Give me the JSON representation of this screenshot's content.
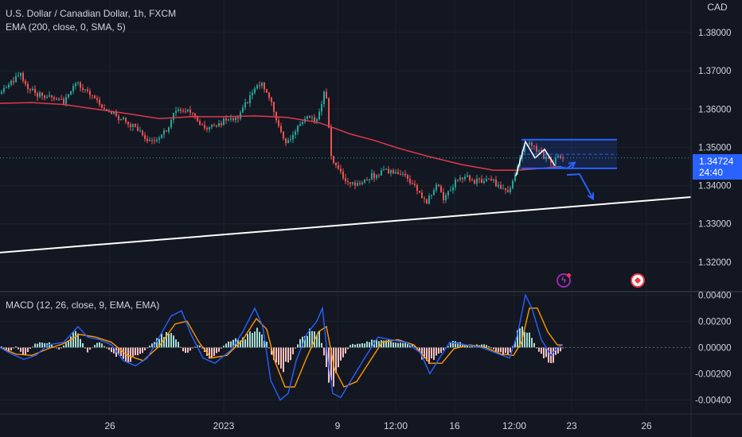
{
  "header": {
    "symbol_title": "U.S. Dollar / Canadian Dollar, 1h, FXCM",
    "ema_label": "EMA (200, close, 0, SMA, 5)",
    "macd_label": "MACD (12, 26, close, 9, EMA, EMA)",
    "currency": "CAD"
  },
  "price_tag": {
    "price": "1.34724",
    "countdown": "24:40"
  },
  "colors": {
    "background": "#131722",
    "grid": "#1e222d",
    "up": "#26a69a",
    "down": "#ef5350",
    "ema": "#e0394e",
    "trendline": "#ffffff",
    "drawing": "#2962ff",
    "macd_line": "#2962ff",
    "signal_line": "#ff9800",
    "hist_up": "#a6dcd2",
    "hist_down": "#fbc1c1"
  },
  "events": [
    {
      "icon": "flash-event-icon"
    },
    {
      "icon": "canada-flag-icon"
    }
  ],
  "chart_data": [
    {
      "type": "candlestick",
      "title": "U.S. Dollar / Canadian Dollar, 1h, FXCM",
      "ylim": [
        1.3125,
        1.3885
      ],
      "yticks": [
        "1.38000",
        "1.37000",
        "1.36000",
        "1.35000",
        "1.34000",
        "1.33000",
        "1.32000"
      ],
      "xticks": [
        "26",
        "2023",
        "9",
        "12:00",
        "16",
        "12:00",
        "23",
        "26"
      ],
      "price_path": [
        [
          0,
          1.364
        ],
        [
          10,
          1.366
        ],
        [
          20,
          1.368
        ],
        [
          26,
          1.369
        ],
        [
          34,
          1.366
        ],
        [
          45,
          1.364
        ],
        [
          60,
          1.363
        ],
        [
          80,
          1.362
        ],
        [
          98,
          1.367
        ],
        [
          110,
          1.364
        ],
        [
          125,
          1.361
        ],
        [
          140,
          1.359
        ],
        [
          155,
          1.357
        ],
        [
          170,
          1.355
        ],
        [
          185,
          1.352
        ],
        [
          195,
          1.351
        ],
        [
          207,
          1.354
        ],
        [
          220,
          1.359
        ],
        [
          232,
          1.36
        ],
        [
          245,
          1.358
        ],
        [
          258,
          1.355
        ],
        [
          270,
          1.356
        ],
        [
          285,
          1.357
        ],
        [
          300,
          1.358
        ],
        [
          308,
          1.361
        ],
        [
          316,
          1.364
        ],
        [
          322,
          1.367
        ],
        [
          330,
          1.366
        ],
        [
          338,
          1.363
        ],
        [
          345,
          1.359
        ],
        [
          352,
          1.354
        ],
        [
          360,
          1.351
        ],
        [
          368,
          1.353
        ],
        [
          378,
          1.356
        ],
        [
          388,
          1.358
        ],
        [
          398,
          1.357
        ],
        [
          404,
          1.362
        ],
        [
          409,
          1.366
        ],
        [
          412,
          1.357
        ],
        [
          416,
          1.347
        ],
        [
          425,
          1.344
        ],
        [
          435,
          1.341
        ],
        [
          445,
          1.34
        ],
        [
          460,
          1.342
        ],
        [
          475,
          1.343
        ],
        [
          490,
          1.344
        ],
        [
          505,
          1.343
        ],
        [
          518,
          1.34
        ],
        [
          528,
          1.338
        ],
        [
          535,
          1.335
        ],
        [
          542,
          1.338
        ],
        [
          550,
          1.34
        ],
        [
          558,
          1.336
        ],
        [
          565,
          1.339
        ],
        [
          572,
          1.341
        ],
        [
          585,
          1.342
        ],
        [
          600,
          1.341
        ],
        [
          612,
          1.342
        ],
        [
          625,
          1.34
        ],
        [
          638,
          1.339
        ],
        [
          645,
          1.341
        ],
        [
          652,
          1.346
        ],
        [
          658,
          1.35
        ],
        [
          664,
          1.351
        ],
        [
          670,
          1.35
        ],
        [
          678,
          1.349
        ],
        [
          686,
          1.347
        ],
        [
          694,
          1.346
        ],
        [
          700,
          1.347
        ],
        [
          707,
          1.347
        ]
      ],
      "series": [
        {
          "name": "EMA (200, close, 0, SMA, 5)",
          "points": [
            [
              0,
              1.3615
            ],
            [
              40,
              1.3617
            ],
            [
              80,
              1.3612
            ],
            [
              120,
              1.36
            ],
            [
              160,
              1.3588
            ],
            [
              200,
              1.3575
            ],
            [
              240,
              1.358
            ],
            [
              280,
              1.358
            ],
            [
              320,
              1.3582
            ],
            [
              360,
              1.3578
            ],
            [
              400,
              1.3565
            ],
            [
              420,
              1.355
            ],
            [
              440,
              1.3535
            ],
            [
              470,
              1.3518
            ],
            [
              500,
              1.3498
            ],
            [
              540,
              1.3475
            ],
            [
              580,
              1.3455
            ],
            [
              620,
              1.344
            ],
            [
              650,
              1.344
            ],
            [
              680,
              1.3445
            ],
            [
              705,
              1.345
            ]
          ]
        }
      ],
      "drawings": {
        "trendline": {
          "from": [
            0,
            1.3225
          ],
          "to": [
            868,
            1.337
          ]
        },
        "range_box": {
          "x1": 655,
          "x2": 775,
          "top": 1.352,
          "bottom": 1.3445,
          "mid": 1.3482
        },
        "zigzag": [
          [
            648,
            1.3425
          ],
          [
            660,
            1.3515
          ],
          [
            672,
            1.3472
          ],
          [
            684,
            1.3495
          ],
          [
            697,
            1.3452
          ]
        ],
        "arrow_1": [
          [
            700,
            1.345
          ],
          [
            712,
            1.3445
          ],
          [
            722,
            1.346
          ]
        ],
        "arrow_2": [
          [
            712,
            1.3428
          ],
          [
            728,
            1.343
          ],
          [
            745,
            1.3365
          ]
        ]
      }
    },
    {
      "type": "bar",
      "title": "MACD (12, 26, close, 9, EMA, EMA)",
      "ylim": [
        -0.005,
        0.0042
      ],
      "yticks": [
        "0.00400",
        "0.00200",
        "0.00000",
        "-0.00200",
        "-0.00400"
      ],
      "histogram_knots": [
        [
          0,
          0.0002
        ],
        [
          10,
          -0.0004
        ],
        [
          20,
          0.0001
        ],
        [
          30,
          -0.0006
        ],
        [
          45,
          0.0003
        ],
        [
          60,
          0.0004
        ],
        [
          75,
          -0.0002
        ],
        [
          95,
          0.0012
        ],
        [
          110,
          -0.0003
        ],
        [
          125,
          0.0005
        ],
        [
          140,
          -0.0004
        ],
        [
          160,
          -0.001
        ],
        [
          175,
          -0.0006
        ],
        [
          195,
          0.0005
        ],
        [
          210,
          0.0012
        ],
        [
          222,
          0.0006
        ],
        [
          232,
          -0.0005
        ],
        [
          250,
          0.0003
        ],
        [
          265,
          -0.001
        ],
        [
          285,
          0.0004
        ],
        [
          310,
          0.0008
        ],
        [
          322,
          0.0014
        ],
        [
          335,
          0.0004
        ],
        [
          345,
          -0.001
        ],
        [
          355,
          -0.0018
        ],
        [
          365,
          -0.0008
        ],
        [
          378,
          0.0008
        ],
        [
          390,
          0.0012
        ],
        [
          402,
          0.001
        ],
        [
          410,
          -0.0018
        ],
        [
          418,
          -0.003
        ],
        [
          426,
          -0.0012
        ],
        [
          440,
          0.0002
        ],
        [
          460,
          0.0004
        ],
        [
          480,
          0.0007
        ],
        [
          500,
          0.0004
        ],
        [
          520,
          0.0002
        ],
        [
          535,
          -0.0012
        ],
        [
          545,
          -0.0009
        ],
        [
          555,
          -0.0003
        ],
        [
          570,
          0.0005
        ],
        [
          590,
          0.0001
        ],
        [
          610,
          0.0003
        ],
        [
          625,
          -0.0004
        ],
        [
          640,
          -0.0006
        ],
        [
          650,
          0.0012
        ],
        [
          660,
          0.0015
        ],
        [
          668,
          0.0006
        ],
        [
          680,
          -0.0006
        ],
        [
          693,
          -0.0011
        ],
        [
          702,
          -0.0004
        ],
        [
          707,
          0.0
        ]
      ],
      "series": [
        {
          "name": "MACD",
          "points": [
            [
              0,
              0.0
            ],
            [
              15,
              -0.0005
            ],
            [
              30,
              -0.0009
            ],
            [
              45,
              -0.0006
            ],
            [
              60,
              0.0002
            ],
            [
              80,
              0.0004
            ],
            [
              98,
              0.0016
            ],
            [
              110,
              0.0008
            ],
            [
              125,
              0.0006
            ],
            [
              140,
              0.0002
            ],
            [
              155,
              -0.001
            ],
            [
              170,
              -0.0014
            ],
            [
              185,
              -0.0008
            ],
            [
              200,
              0.0008
            ],
            [
              215,
              0.0024
            ],
            [
              228,
              0.0028
            ],
            [
              240,
              0.001
            ],
            [
              255,
              -0.0008
            ],
            [
              270,
              -0.0012
            ],
            [
              290,
              -0.0002
            ],
            [
              305,
              0.0012
            ],
            [
              320,
              0.003
            ],
            [
              330,
              0.0016
            ],
            [
              340,
              -0.0025
            ],
            [
              352,
              -0.004
            ],
            [
              362,
              -0.0035
            ],
            [
              372,
              -0.001
            ],
            [
              385,
              0.001
            ],
            [
              398,
              0.002
            ],
            [
              405,
              0.003
            ],
            [
              412,
              -0.001
            ],
            [
              418,
              -0.0035
            ],
            [
              428,
              -0.0038
            ],
            [
              442,
              -0.0024
            ],
            [
              458,
              -0.0008
            ],
            [
              475,
              0.0008
            ],
            [
              490,
              0.0006
            ],
            [
              510,
              0.0004
            ],
            [
              528,
              -0.0004
            ],
            [
              540,
              -0.002
            ],
            [
              552,
              -0.0008
            ],
            [
              565,
              0.0004
            ],
            [
              585,
              0.0002
            ],
            [
              605,
              0.0
            ],
            [
              622,
              -0.0004
            ],
            [
              640,
              -0.0008
            ],
            [
              650,
              0.001
            ],
            [
              660,
              0.004
            ],
            [
              668,
              0.003
            ],
            [
              680,
              0.0006
            ],
            [
              692,
              -0.0006
            ],
            [
              700,
              0.0
            ],
            [
              707,
              0.0002
            ]
          ]
        },
        {
          "name": "Signal",
          "points": [
            [
              0,
              0.0
            ],
            [
              20,
              -0.0005
            ],
            [
              40,
              -0.0006
            ],
            [
              60,
              -0.0001
            ],
            [
              80,
              0.0003
            ],
            [
              100,
              0.001
            ],
            [
              120,
              0.0008
            ],
            [
              140,
              0.0004
            ],
            [
              160,
              -0.0006
            ],
            [
              180,
              -0.001
            ],
            [
              200,
              0.0001
            ],
            [
              220,
              0.0018
            ],
            [
              235,
              0.002
            ],
            [
              250,
              0.0004
            ],
            [
              265,
              -0.0008
            ],
            [
              285,
              -0.0006
            ],
            [
              305,
              0.0006
            ],
            [
              322,
              0.0022
            ],
            [
              335,
              0.0014
            ],
            [
              345,
              -0.001
            ],
            [
              358,
              -0.003
            ],
            [
              370,
              -0.003
            ],
            [
              385,
              -0.0008
            ],
            [
              400,
              0.0012
            ],
            [
              410,
              0.0016
            ],
            [
              420,
              -0.0016
            ],
            [
              432,
              -0.003
            ],
            [
              448,
              -0.0026
            ],
            [
              465,
              -0.001
            ],
            [
              480,
              0.0004
            ],
            [
              500,
              0.0006
            ],
            [
              520,
              0.0002
            ],
            [
              540,
              -0.0012
            ],
            [
              555,
              -0.0012
            ],
            [
              570,
              -0.0001
            ],
            [
              590,
              0.0002
            ],
            [
              610,
              0.0
            ],
            [
              630,
              -0.0005
            ],
            [
              645,
              -0.0006
            ],
            [
              655,
              0.0004
            ],
            [
              665,
              0.003
            ],
            [
              675,
              0.003
            ],
            [
              688,
              0.0012
            ],
            [
              700,
              0.0002
            ],
            [
              707,
              0.0002
            ]
          ]
        }
      ]
    }
  ]
}
